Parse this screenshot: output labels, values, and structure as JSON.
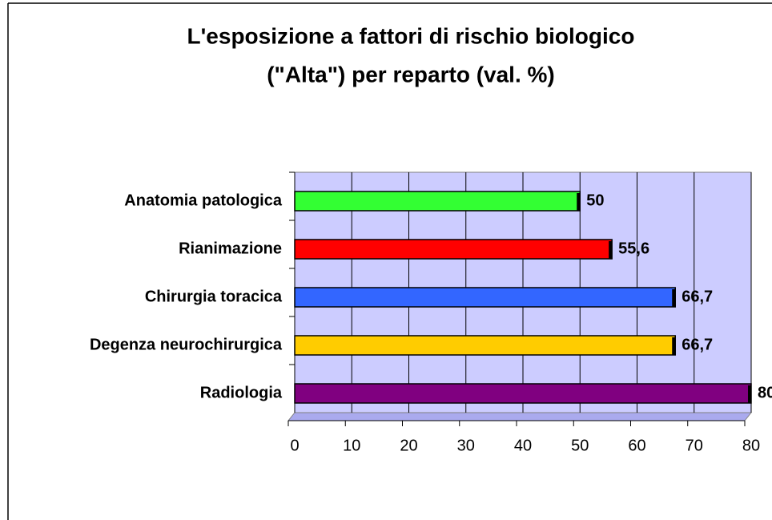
{
  "chart_data": {
    "type": "bar",
    "orientation": "horizontal",
    "title": [
      "L'esposizione a fattori di rischio biologico",
      "(\"Alta\") per reparto (val. %)"
    ],
    "categories": [
      "Anatomia patologica",
      "Rianimazione",
      "Chirurgia toracica",
      "Degenza neurochirurgica",
      "Radiologia"
    ],
    "values": [
      50,
      55.6,
      66.7,
      66.7,
      80
    ],
    "value_labels": [
      "50",
      "55,6",
      "66,7",
      "66,7",
      "80"
    ],
    "colors": [
      "#33ff33",
      "#ff0000",
      "#3366ff",
      "#ffcc00",
      "#800080"
    ],
    "xlim": [
      0,
      80
    ],
    "xticks": [
      0,
      10,
      20,
      30,
      40,
      50,
      60,
      70,
      80
    ],
    "grid": true
  }
}
